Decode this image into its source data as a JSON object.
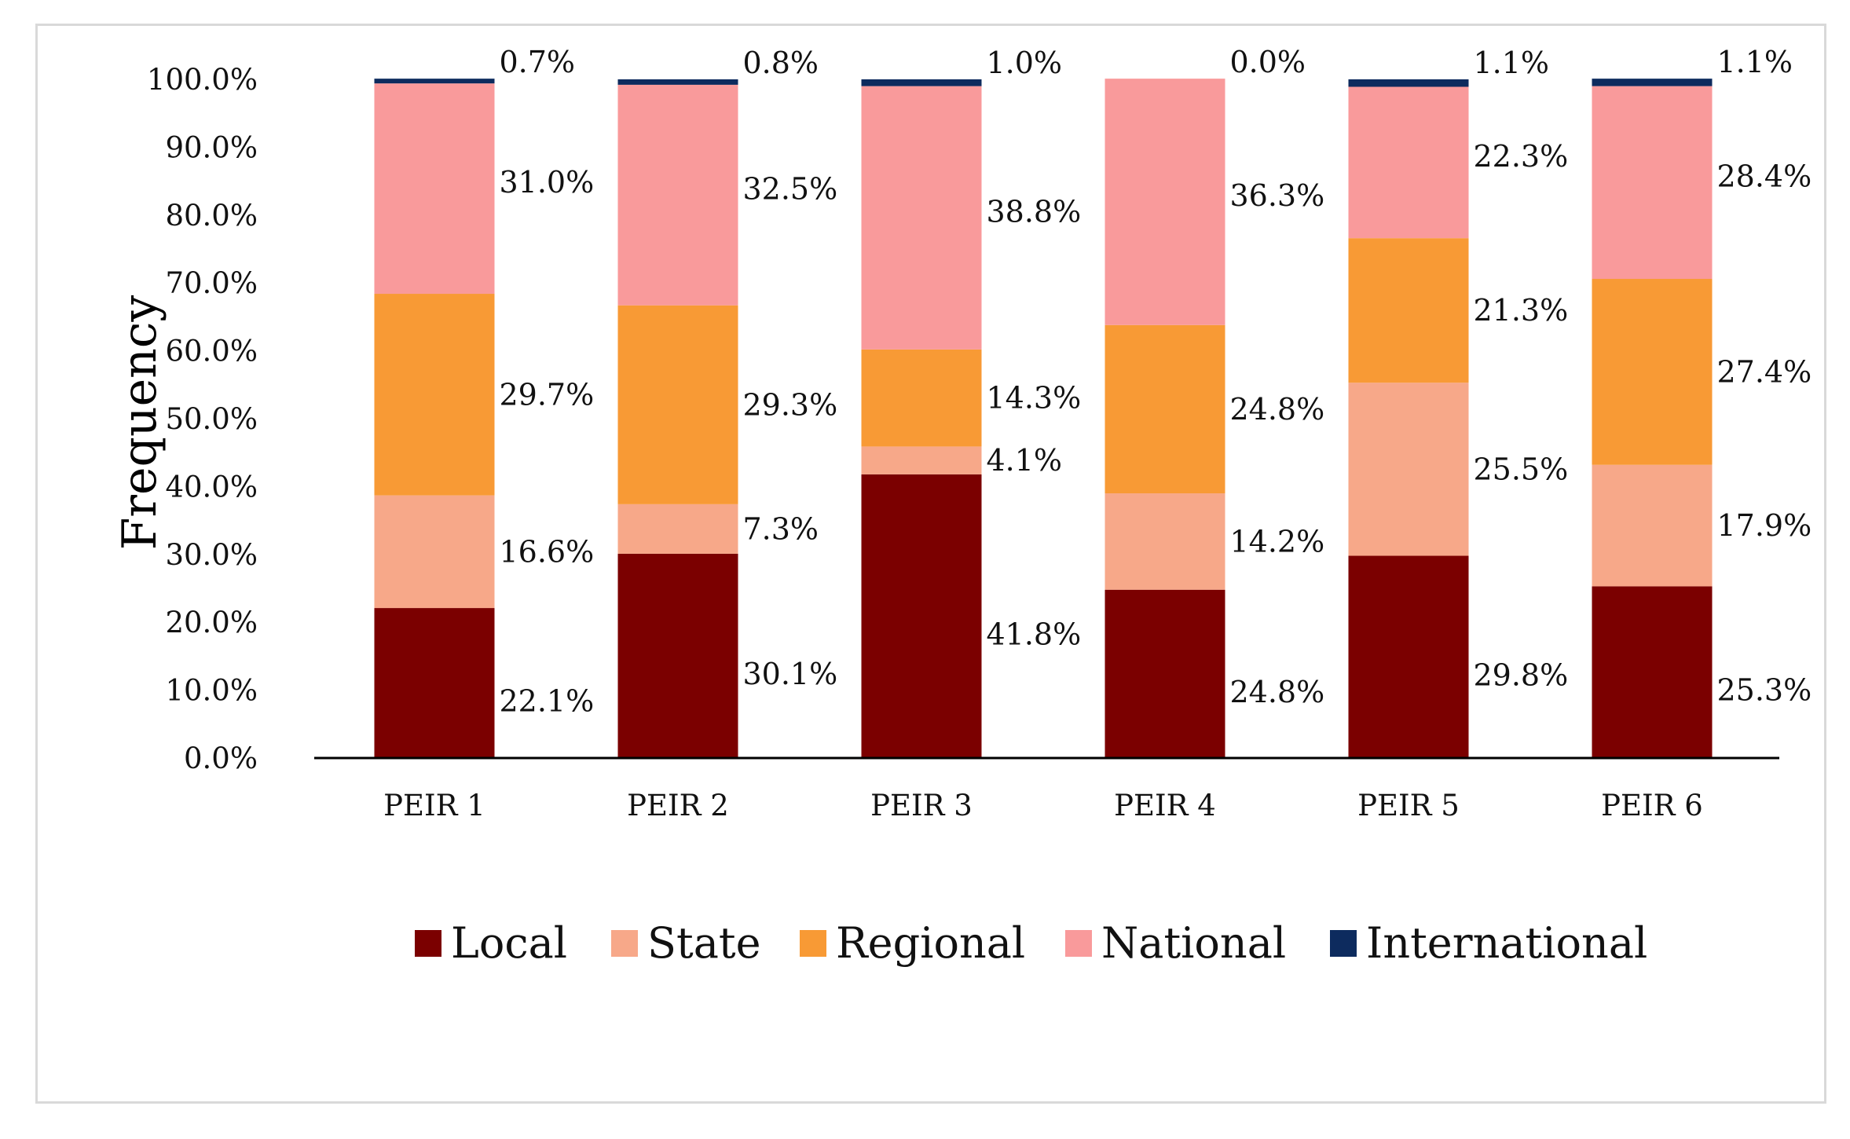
{
  "chart_data": {
    "type": "bar",
    "stacked": true,
    "title": "",
    "xlabel": "",
    "ylabel": "Frequency",
    "ylim": [
      0,
      100
    ],
    "y_ticks": [
      "0.0%",
      "10.0%",
      "20.0%",
      "30.0%",
      "40.0%",
      "50.0%",
      "60.0%",
      "70.0%",
      "80.0%",
      "90.0%",
      "100.0%"
    ],
    "categories": [
      "PEIR 1",
      "PEIR 2",
      "PEIR 3",
      "PEIR 4",
      "PEIR 5",
      "PEIR 6"
    ],
    "series": [
      {
        "name": "Local",
        "color": "#7b0000",
        "values": [
          22.1,
          30.1,
          41.8,
          24.8,
          29.8,
          25.3
        ],
        "labels": [
          "22.1%",
          "30.1%",
          "41.8%",
          "24.8%",
          "29.8%",
          "25.3%"
        ]
      },
      {
        "name": "State",
        "color": "#f7a889",
        "values": [
          16.6,
          7.3,
          4.1,
          14.2,
          25.5,
          17.9
        ],
        "labels": [
          "16.6%",
          "7.3%",
          "4.1%",
          "14.2%",
          "25.5%",
          "17.9%"
        ]
      },
      {
        "name": "Regional",
        "color": "#f89a35",
        "values": [
          29.7,
          29.3,
          14.3,
          24.8,
          21.3,
          27.4
        ],
        "labels": [
          "29.7%",
          "29.3%",
          "14.3%",
          "24.8%",
          "21.3%",
          "27.4%"
        ]
      },
      {
        "name": "National",
        "color": "#f99a9b",
        "values": [
          31.0,
          32.5,
          38.8,
          36.3,
          22.3,
          28.4
        ],
        "labels": [
          "31.0%",
          "32.5%",
          "38.8%",
          "36.3%",
          "22.3%",
          "28.4%"
        ]
      },
      {
        "name": "International",
        "color": "#0d2b5e",
        "values": [
          0.7,
          0.8,
          1.0,
          0.0,
          1.1,
          1.1
        ],
        "labels": [
          "0.7%",
          "0.8%",
          "1.0%",
          "0.0%",
          "1.1%",
          "1.1%"
        ]
      }
    ],
    "legend_position": "bottom"
  }
}
